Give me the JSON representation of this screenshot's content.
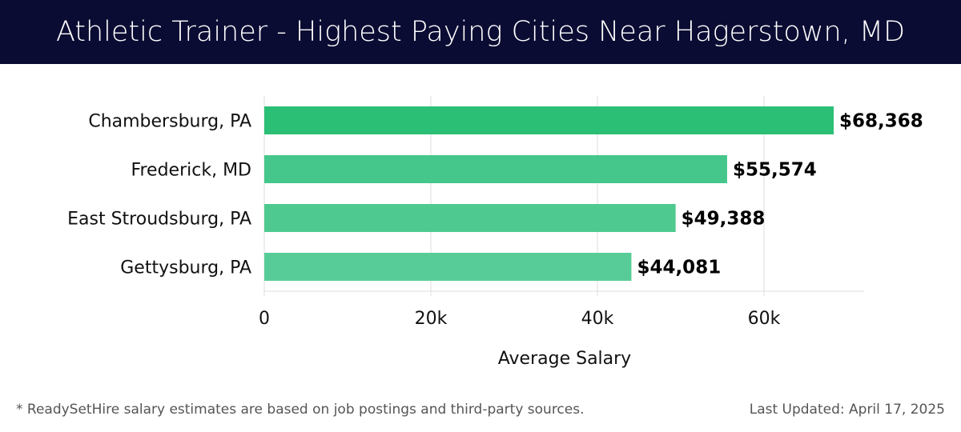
{
  "header": {
    "title": "Athletic Trainer - Highest Paying Cities Near Hagerstown, MD"
  },
  "chart_data": {
    "type": "bar",
    "orientation": "horizontal",
    "title": "Athletic Trainer - Highest Paying Cities Near Hagerstown, MD",
    "categories": [
      "Chambersburg, PA",
      "Frederick, MD",
      "East Stroudsburg, PA",
      "Gettysburg, PA"
    ],
    "values": [
      68368,
      55574,
      49388,
      44081
    ],
    "data_labels": [
      "$68,368",
      "$55,574",
      "$49,388",
      "$44,081"
    ],
    "colors": [
      "#2bbf76",
      "#45c68a",
      "#4ec98f",
      "#57cc98"
    ],
    "xlabel": "Average Salary",
    "ylabel": "",
    "xlim": [
      0,
      72000
    ],
    "xticks": [
      0,
      20000,
      40000,
      60000
    ],
    "xtick_labels": [
      "0",
      "20k",
      "40k",
      "60k"
    ],
    "grid": true
  },
  "footer": {
    "note": "* ReadySetHire salary estimates are based on job postings and third-party sources.",
    "updated": "Last Updated: April 17, 2025"
  }
}
